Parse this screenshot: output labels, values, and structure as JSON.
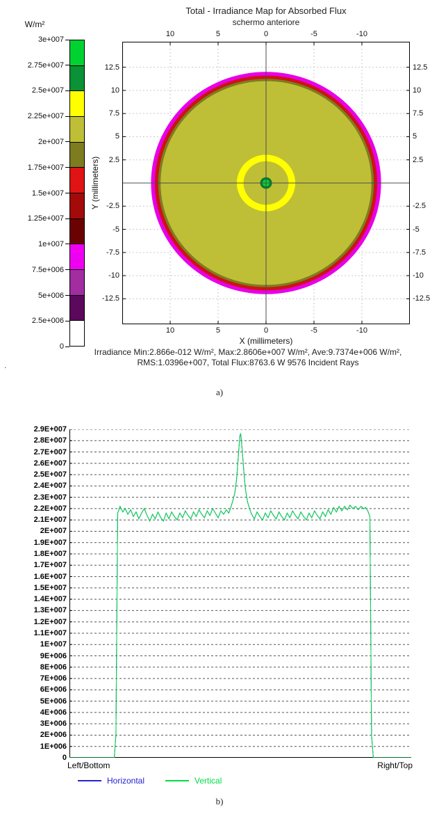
{
  "captions": {
    "a": "a)",
    "b": "b)"
  },
  "stray_mark": ".",
  "chart_data": [
    {
      "id": "irradiance_map",
      "type": "heatmap",
      "title": "Total - Irradiance Map for Absorbed Flux",
      "subtitle": "schermo anteriore",
      "xlabel": "X (millimeters)",
      "ylabel": "Y (millimeters)",
      "x_ticks": [
        10,
        5,
        0,
        -5,
        -10
      ],
      "y_ticks": [
        12.5,
        10,
        7.5,
        5,
        2.5,
        -2.5,
        -5,
        -7.5,
        -10,
        -12.5
      ],
      "x_range_left_to_right": [
        15,
        -15
      ],
      "y_range_top_to_bottom": [
        15.25,
        -15.25
      ],
      "grid": true,
      "stats_line1": "Irradiance Min:2.866e-012 W/m², Max:2.8606e+007 W/m², Ave:9.7374e+006 W/m²,",
      "stats_line2": "RMS:1.0396e+007, Total Flux:8763.6 W 9576 Incident Rays",
      "colorbar": {
        "unit": "W/m²",
        "tick_labels": [
          "3e+007",
          "2.75e+007",
          "2.5e+007",
          "2.25e+007",
          "2e+007",
          "1.75e+007",
          "1.5e+007",
          "1.25e+007",
          "1e+007",
          "7.5e+006",
          "5e+006",
          "2.5e+006",
          "0"
        ],
        "segment_colors_top_to_bottom": [
          "#00d232",
          "#0b9136",
          "#ffff00",
          "#bfbf37",
          "#7d7d1f",
          "#e01414",
          "#a30a0a",
          "#6b0202",
          "#f000f0",
          "#a12da1",
          "#5c085c",
          "#ffffff"
        ]
      },
      "disk_circles_center_mm": [
        0,
        0
      ],
      "disk_circles": [
        {
          "r_mm": 12.0,
          "fill": "#e800e8",
          "meaning": "outer rim ~7.5e+006-1e+007"
        },
        {
          "r_mm": 11.6,
          "fill": "#cc1414",
          "meaning": "rim ~1.5e+007"
        },
        {
          "r_mm": 11.25,
          "fill": "#7d7d1f",
          "meaning": "rim ~1.75e+007-2e+007"
        },
        {
          "r_mm": 11.0,
          "fill": "#bfbf37",
          "meaning": "main disk ~2e+007-2.25e+007"
        },
        {
          "r_mm": 3.05,
          "fill": "#ffff00",
          "meaning": "ring ~2.25e+007-2.5e+007"
        },
        {
          "r_mm": 2.35,
          "fill": "#bfbf37",
          "meaning": "inside ring ~2e+007-2.25e+007"
        },
        {
          "r_mm": 0.62,
          "fill": "#0b7a2c",
          "meaning": "hot spot edge ~2.5e+007-2.75e+007"
        },
        {
          "r_mm": 0.38,
          "fill": "#00d232",
          "meaning": "hot spot peak ~2.86e+007"
        }
      ]
    },
    {
      "id": "flux_profile",
      "type": "line",
      "x_axis_left_label": "Left/Bottom",
      "x_axis_right_label": "Right/Top",
      "y_tick_labels": [
        "2.9E+007",
        "2.8E+007",
        "2.7E+007",
        "2.6E+007",
        "2.5E+007",
        "2.4E+007",
        "2.3E+007",
        "2.2E+007",
        "2.1E+007",
        "2E+007",
        "1.9E+007",
        "1.8E+007",
        "1.7E+007",
        "1.6E+007",
        "1.5E+007",
        "1.4E+007",
        "1.3E+007",
        "1.2E+007",
        "1.1E+007",
        "1E+007",
        "9E+006",
        "8E+006",
        "7E+006",
        "6E+006",
        "5E+006",
        "4E+006",
        "3E+006",
        "2E+006",
        "1E+006",
        "0"
      ],
      "y_max": 29,
      "value_scale": 1000000,
      "grid": true,
      "legend_position": "bottom-left",
      "series": [
        {
          "name": "Horizontal",
          "color": "#2323cf",
          "points_ref": "Vertical"
        },
        {
          "name": "Vertical",
          "color": "#00dd44",
          "points": [
            [
              0,
              0
            ],
            [
              0.131,
              0
            ],
            [
              0.136,
              2
            ],
            [
              0.141,
              21.6
            ],
            [
              0.148,
              22.2
            ],
            [
              0.156,
              21.7
            ],
            [
              0.163,
              22.0
            ],
            [
              0.171,
              21.5
            ],
            [
              0.179,
              21.9
            ],
            [
              0.187,
              21.3
            ],
            [
              0.195,
              21.7
            ],
            [
              0.203,
              21.1
            ],
            [
              0.211,
              21.6
            ],
            [
              0.219,
              22.0
            ],
            [
              0.227,
              21.4
            ],
            [
              0.235,
              20.9
            ],
            [
              0.243,
              21.5
            ],
            [
              0.251,
              21.1
            ],
            [
              0.259,
              21.7
            ],
            [
              0.267,
              21.2
            ],
            [
              0.275,
              20.9
            ],
            [
              0.283,
              21.6
            ],
            [
              0.291,
              21.1
            ],
            [
              0.299,
              21.7
            ],
            [
              0.307,
              21.3
            ],
            [
              0.315,
              21.0
            ],
            [
              0.323,
              21.6
            ],
            [
              0.331,
              21.2
            ],
            [
              0.339,
              21.8
            ],
            [
              0.347,
              21.4
            ],
            [
              0.355,
              21.1
            ],
            [
              0.363,
              21.7
            ],
            [
              0.371,
              21.3
            ],
            [
              0.379,
              21.9
            ],
            [
              0.387,
              21.5
            ],
            [
              0.395,
              21.2
            ],
            [
              0.403,
              21.8
            ],
            [
              0.411,
              21.4
            ],
            [
              0.419,
              22.0
            ],
            [
              0.427,
              21.6
            ],
            [
              0.435,
              21.2
            ],
            [
              0.443,
              21.8
            ],
            [
              0.451,
              21.5
            ],
            [
              0.459,
              21.9
            ],
            [
              0.466,
              21.6
            ],
            [
              0.472,
              22.1
            ],
            [
              0.478,
              22.7
            ],
            [
              0.484,
              23.4
            ],
            [
              0.489,
              24.6
            ],
            [
              0.493,
              26.2
            ],
            [
              0.496,
              27.4
            ],
            [
              0.499,
              28.5
            ],
            [
              0.501,
              28.6
            ],
            [
              0.503,
              28.0
            ],
            [
              0.507,
              26.6
            ],
            [
              0.511,
              25.0
            ],
            [
              0.515,
              23.7
            ],
            [
              0.521,
              22.6
            ],
            [
              0.527,
              22.0
            ],
            [
              0.533,
              21.5
            ],
            [
              0.541,
              21.1
            ],
            [
              0.549,
              21.7
            ],
            [
              0.557,
              21.3
            ],
            [
              0.565,
              21.0
            ],
            [
              0.573,
              21.6
            ],
            [
              0.581,
              21.2
            ],
            [
              0.589,
              21.8
            ],
            [
              0.597,
              21.4
            ],
            [
              0.605,
              21.1
            ],
            [
              0.613,
              21.7
            ],
            [
              0.621,
              21.3
            ],
            [
              0.629,
              21.0
            ],
            [
              0.637,
              21.6
            ],
            [
              0.645,
              21.2
            ],
            [
              0.653,
              21.8
            ],
            [
              0.661,
              21.4
            ],
            [
              0.669,
              21.1
            ],
            [
              0.677,
              21.7
            ],
            [
              0.685,
              21.3
            ],
            [
              0.693,
              21.0
            ],
            [
              0.701,
              21.6
            ],
            [
              0.709,
              21.2
            ],
            [
              0.717,
              21.8
            ],
            [
              0.725,
              21.4
            ],
            [
              0.733,
              21.1
            ],
            [
              0.741,
              21.7
            ],
            [
              0.749,
              21.3
            ],
            [
              0.757,
              21.9
            ],
            [
              0.765,
              21.5
            ],
            [
              0.773,
              22.1
            ],
            [
              0.781,
              21.7
            ],
            [
              0.789,
              22.2
            ],
            [
              0.797,
              21.8
            ],
            [
              0.805,
              22.2
            ],
            [
              0.813,
              21.9
            ],
            [
              0.821,
              22.3
            ],
            [
              0.829,
              22.0
            ],
            [
              0.837,
              22.2
            ],
            [
              0.845,
              21.9
            ],
            [
              0.853,
              22.2
            ],
            [
              0.861,
              22.0
            ],
            [
              0.867,
              22.1
            ],
            [
              0.873,
              21.8
            ],
            [
              0.879,
              21.3
            ],
            [
              0.884,
              2
            ],
            [
              0.889,
              0
            ],
            [
              1,
              0
            ]
          ]
        }
      ]
    }
  ]
}
